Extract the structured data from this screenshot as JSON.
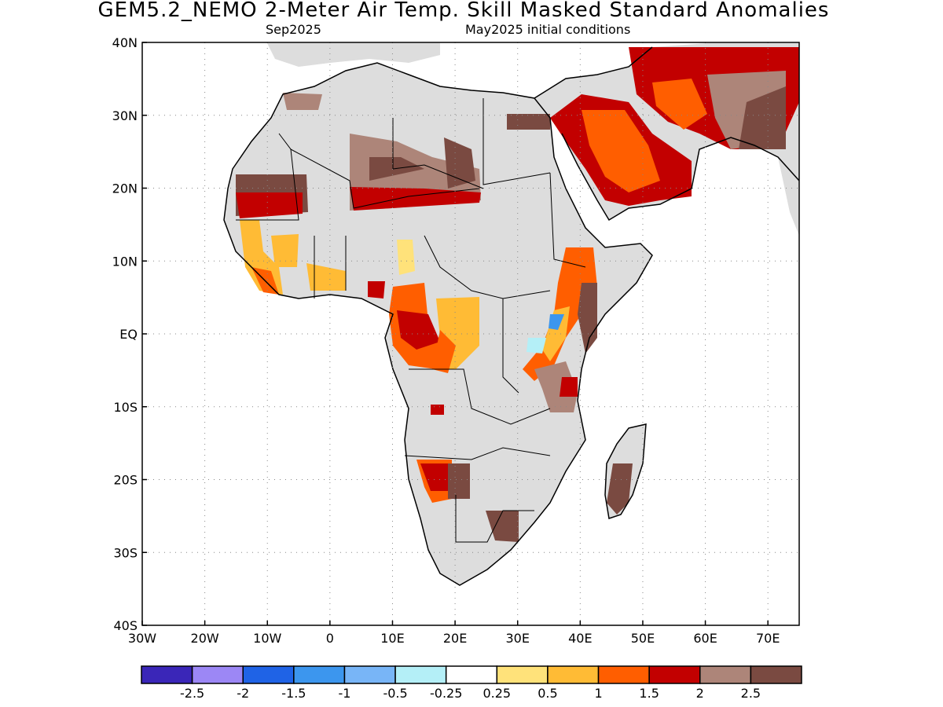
{
  "title": "GEM5.2_NEMO 2-Meter Air Temp. Skill Masked Standard Anomalies",
  "subtitle_left": "Sep2025",
  "subtitle_right": "May2025 initial conditions",
  "lon_ticks": [
    "30W",
    "20W",
    "10W",
    "0",
    "10E",
    "20E",
    "30E",
    "40E",
    "50E",
    "60E",
    "70E"
  ],
  "lat_ticks": [
    "40N",
    "30N",
    "20N",
    "10N",
    "EQ",
    "10S",
    "20S",
    "30S",
    "40S"
  ],
  "colorbar": {
    "colors": [
      "#3a26b8",
      "#9c87f5",
      "#1f63e6",
      "#3c96ee",
      "#78b5f7",
      "#b4eff7",
      "#ffffff",
      "#ffe27a",
      "#ffbb35",
      "#ff5e00",
      "#c20000",
      "#ad8579",
      "#7a4a41"
    ],
    "labels": [
      "-2.5",
      "-2",
      "-1.5",
      "-1",
      "-0.5",
      "-0.25",
      "0.25",
      "0.5",
      "1",
      "1.5",
      "2",
      "2.5"
    ]
  }
}
